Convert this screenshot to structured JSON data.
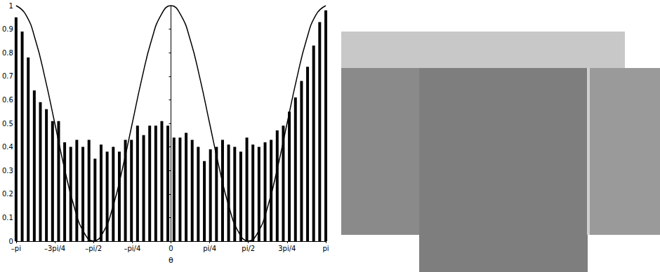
{
  "chart_data": {
    "type": "bar",
    "x_label": "θ",
    "xlim": [
      -3.1416,
      3.1416
    ],
    "xticks": [
      {
        "value": -3.1416,
        "label": "–pi"
      },
      {
        "value": -2.3562,
        "label": "–3pi/4"
      },
      {
        "value": -1.5708,
        "label": "–pi/2"
      },
      {
        "value": -0.7854,
        "label": "–pi/4"
      },
      0,
      {
        "value": 0.7854,
        "label": "pi/4"
      },
      {
        "value": 1.5708,
        "label": "pi/2"
      },
      {
        "value": 2.3562,
        "label": "3pi/4"
      },
      {
        "value": 3.1416,
        "label": "pi"
      }
    ],
    "ylim": [
      0,
      1
    ],
    "yticks": [
      0,
      0.1,
      0.2,
      0.3,
      0.4,
      0.5,
      0.6,
      0.7,
      0.8,
      0.9,
      1
    ],
    "grid": false,
    "series": [
      {
        "type": "bar",
        "color": "#000000",
        "x": [
          -3.142,
          -3.018,
          -2.895,
          -2.772,
          -2.649,
          -2.526,
          -2.402,
          -2.279,
          -2.156,
          -2.033,
          -1.91,
          -1.786,
          -1.663,
          -1.54,
          -1.417,
          -1.294,
          -1.17,
          -1.047,
          -0.924,
          -0.801,
          -0.678,
          -0.554,
          -0.431,
          -0.308,
          -0.185,
          -0.062,
          0.062,
          0.185,
          0.308,
          0.431,
          0.554,
          0.678,
          0.801,
          0.924,
          1.047,
          1.17,
          1.294,
          1.417,
          1.54,
          1.663,
          1.786,
          1.91,
          2.033,
          2.156,
          2.279,
          2.402,
          2.526,
          2.649,
          2.772,
          2.895,
          3.018,
          3.142
        ],
        "values": [
          0.95,
          0.89,
          0.78,
          0.64,
          0.59,
          0.56,
          0.51,
          0.51,
          0.42,
          0.4,
          0.43,
          0.4,
          0.43,
          0.35,
          0.41,
          0.38,
          0.4,
          0.38,
          0.43,
          0.43,
          0.49,
          0.45,
          0.49,
          0.49,
          0.51,
          0.49,
          0.44,
          0.44,
          0.46,
          0.43,
          0.4,
          0.34,
          0.39,
          0.4,
          0.43,
          0.41,
          0.4,
          0.38,
          0.44,
          0.41,
          0.4,
          0.42,
          0.43,
          0.47,
          0.49,
          0.55,
          0.61,
          0.68,
          0.74,
          0.83,
          0.93,
          0.98
        ]
      },
      {
        "type": "line",
        "color": "#000000",
        "x": [
          -3.142,
          -2.945,
          -2.749,
          -2.553,
          -2.356,
          -2.16,
          -1.963,
          -1.767,
          -1.571,
          -1.374,
          -1.178,
          -0.982,
          -0.785,
          -0.589,
          -0.393,
          -0.196,
          0,
          0.196,
          0.393,
          0.589,
          0.785,
          0.982,
          1.178,
          1.374,
          1.571,
          1.767,
          1.963,
          2.16,
          2.356,
          2.553,
          2.749,
          2.945,
          3.142
        ],
        "values": [
          1,
          0.962,
          0.854,
          0.691,
          0.5,
          0.309,
          0.146,
          0.038,
          0,
          0.038,
          0.146,
          0.309,
          0.5,
          0.691,
          0.854,
          0.962,
          1,
          0.962,
          0.854,
          0.691,
          0.5,
          0.309,
          0.146,
          0.038,
          0,
          0.038,
          0.146,
          0.309,
          0.5,
          0.691,
          0.854,
          0.962,
          1
        ]
      }
    ]
  }
}
